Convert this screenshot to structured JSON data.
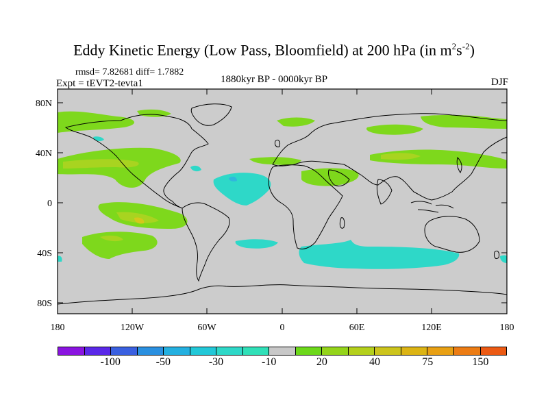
{
  "title": {
    "main": "Eddy Kinetic Energy (Low Pass, Bloomfield) at 200 hPa (in m",
    "sup1": "2",
    "mid": "s",
    "sup2": "-2",
    "end": ")"
  },
  "stats": "rmsd= 7.82681 diff= 1.7882",
  "expt": "Expt = tEVT2-tevta1",
  "period": "1880kyr BP - 0000kyr BP",
  "season": "DJF",
  "axes": {
    "lat_labels": [
      "80N",
      "40N",
      "0",
      "40S",
      "80S"
    ],
    "lon_labels": [
      "180",
      "120W",
      "60W",
      "0",
      "60E",
      "120E",
      "180"
    ]
  },
  "colors": {
    "background": "#cccccc",
    "land_outline": "#000000",
    "neg_light": "#2ed8c8",
    "neg_mid": "#30b8dc",
    "pos_light": "#7ed81c",
    "pos_mid": "#a8d420",
    "pos_high": "#d4c81c"
  },
  "colorbar": {
    "colors": [
      "#8a14e0",
      "#5a28e8",
      "#3a60e0",
      "#2a90e0",
      "#24b0e0",
      "#22c8d8",
      "#2ed8c8",
      "#30e0b8",
      "#c8c8c8",
      "#6cd81a",
      "#94d41a",
      "#b4d01c",
      "#ccc41c",
      "#dcb414",
      "#e8a014",
      "#ec7c14",
      "#ec5a14"
    ],
    "labels": [
      "-100",
      "-50",
      "-30",
      "-10",
      "20",
      "40",
      "75",
      "150"
    ]
  }
}
